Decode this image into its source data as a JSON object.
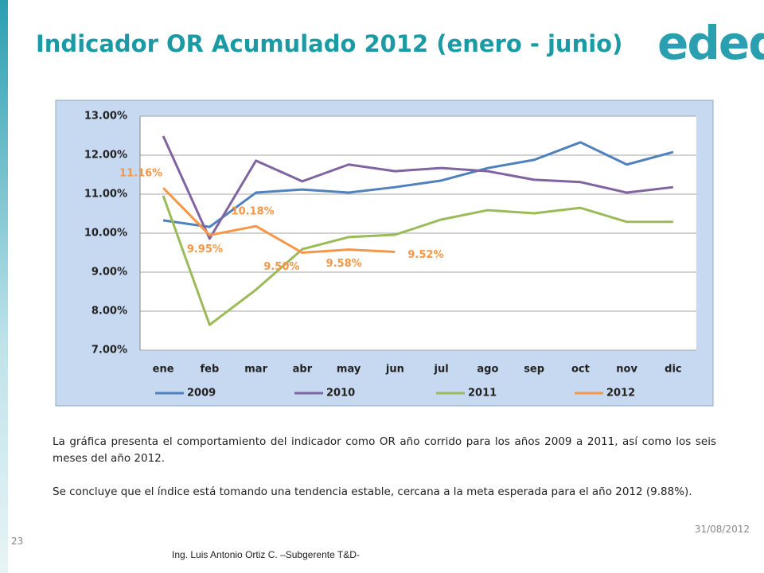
{
  "slide": {
    "title": "Indicador OR Acumulado 2012 (enero - junio)",
    "logo": "edeq",
    "paragraphs": [
      "La gráfica presenta el comportamiento del indicador como OR año corrido para los años 2009 a 2011, así como los seis meses del año 2012.",
      "Se concluye que el índice está tomando una tendencia estable, cercana a la meta esperada para el año 2012 (9.88%)."
    ],
    "date": "31/08/2012",
    "page_number": "23",
    "footer": "Ing. Luis Antonio Ortiz C. –Subgerente T&D-"
  },
  "chart_data": {
    "type": "line",
    "categories": [
      "ene",
      "feb",
      "mar",
      "abr",
      "may",
      "jun",
      "jul",
      "ago",
      "sep",
      "oct",
      "nov",
      "dic"
    ],
    "series": [
      {
        "name": "2009",
        "color": "#4f81bd",
        "values": [
          10.33,
          10.16,
          11.04,
          11.12,
          11.04,
          11.18,
          11.35,
          11.67,
          11.88,
          12.33,
          11.76,
          12.08
        ]
      },
      {
        "name": "2010",
        "color": "#8064a2",
        "values": [
          12.49,
          9.86,
          11.86,
          11.33,
          11.76,
          11.59,
          11.67,
          11.59,
          11.37,
          11.31,
          11.04,
          11.18
        ]
      },
      {
        "name": "2011",
        "color": "#9bbb59",
        "values": [
          10.96,
          7.65,
          8.55,
          9.59,
          9.9,
          9.96,
          10.35,
          10.59,
          10.51,
          10.65,
          10.29,
          10.29
        ]
      },
      {
        "name": "2012",
        "color": "#f79646",
        "values": [
          11.16,
          9.95,
          10.18,
          9.5,
          9.58,
          9.52,
          null,
          null,
          null,
          null,
          null,
          null
        ],
        "value_labels": [
          "11.16%",
          "9.95%",
          "10.18%",
          "9.50%",
          "9.58%",
          "9.52%",
          null,
          null,
          null,
          null,
          null,
          null
        ]
      }
    ],
    "ylim": [
      7,
      13
    ],
    "yticks": [
      {
        "value": 7,
        "label": "7.00%"
      },
      {
        "value": 8,
        "label": "8.00%"
      },
      {
        "value": 9,
        "label": "9.00%"
      },
      {
        "value": 10,
        "label": "10.00%"
      },
      {
        "value": 11,
        "label": "11.00%"
      },
      {
        "value": 12,
        "label": "12.00%"
      },
      {
        "value": 13,
        "label": "13.00%"
      }
    ],
    "grid": true,
    "legend": "bottom"
  }
}
